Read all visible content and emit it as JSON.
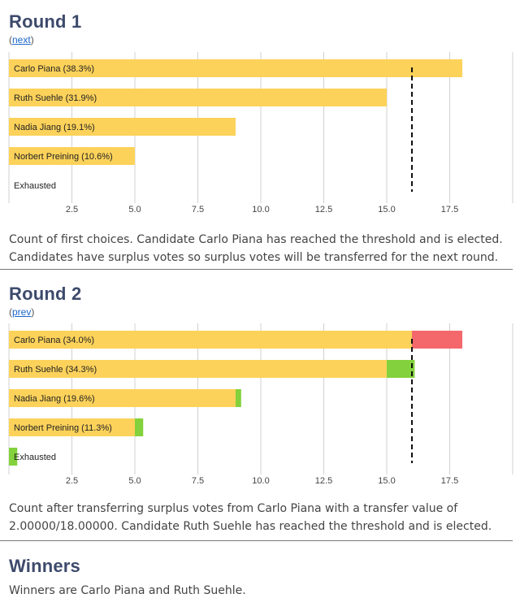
{
  "rounds": [
    {
      "title": "Round 1",
      "nav": {
        "open": "(",
        "label": "next",
        "close": ")"
      },
      "description_lines": [
        "Count of first choices. Candidate Carlo Piana has reached the threshold and is elected.",
        "Candidates have surplus votes so surplus votes will be transferred for the next round."
      ]
    },
    {
      "title": "Round 2",
      "nav": {
        "open": "(",
        "label": "prev",
        "close": ")"
      },
      "description_lines": [
        "Count after transferring surplus votes from Carlo Piana with a transfer value of",
        "2.00000/18.00000. Candidate Ruth Suehle has reached the threshold and is elected."
      ]
    }
  ],
  "winners": {
    "title": "Winners",
    "text": "Winners are Carlo Piana and Ruth Suehle."
  },
  "colors": {
    "bar": "#fcd25a",
    "gain": "#83d13c",
    "loss": "#f4686b",
    "threshold": "#111111",
    "grid": "#d0d0d0",
    "heading": "#3d4a6b",
    "link": "#1a66cc"
  },
  "chart_data": [
    {
      "type": "bar",
      "orientation": "horizontal",
      "stacked": true,
      "categories": [
        "Carlo Piana (38.3%)",
        "Ruth Suehle (31.9%)",
        "Nadia Jiang (19.1%)",
        "Norbert Preining (10.6%)",
        "Exhausted"
      ],
      "series": [
        {
          "key": "kept",
          "values": [
            18,
            15,
            9,
            5,
            0
          ]
        },
        {
          "key": "gain",
          "values": [
            0,
            0,
            0,
            0,
            0
          ]
        },
        {
          "key": "loss",
          "values": [
            0,
            0,
            0,
            0,
            0
          ]
        }
      ],
      "threshold": 16,
      "xlim": [
        0,
        20
      ],
      "xticks": [
        2.5,
        5.0,
        7.5,
        10.0,
        12.5,
        15.0,
        17.5
      ],
      "xtick_labels": [
        "2.5",
        "5.0",
        "7.5",
        "10.0",
        "12.5",
        "15.0",
        "17.5"
      ],
      "grid": true
    },
    {
      "type": "bar",
      "orientation": "horizontal",
      "stacked": true,
      "categories": [
        "Carlo Piana (34.0%)",
        "Ruth Suehle (34.3%)",
        "Nadia Jiang (19.6%)",
        "Norbert Preining (11.3%)",
        "Exhausted"
      ],
      "series": [
        {
          "key": "kept",
          "values": [
            16,
            15,
            9,
            5,
            0
          ]
        },
        {
          "key": "gain",
          "values": [
            0,
            1.11,
            0.22,
            0.33,
            0.33
          ]
        },
        {
          "key": "loss",
          "values": [
            2,
            0,
            0,
            0,
            0
          ]
        }
      ],
      "threshold": 16,
      "xlim": [
        0,
        20
      ],
      "xticks": [
        2.5,
        5.0,
        7.5,
        10.0,
        12.5,
        15.0,
        17.5
      ],
      "xtick_labels": [
        "2.5",
        "5.0",
        "7.5",
        "10.0",
        "12.5",
        "15.0",
        "17.5"
      ],
      "grid": true
    }
  ]
}
